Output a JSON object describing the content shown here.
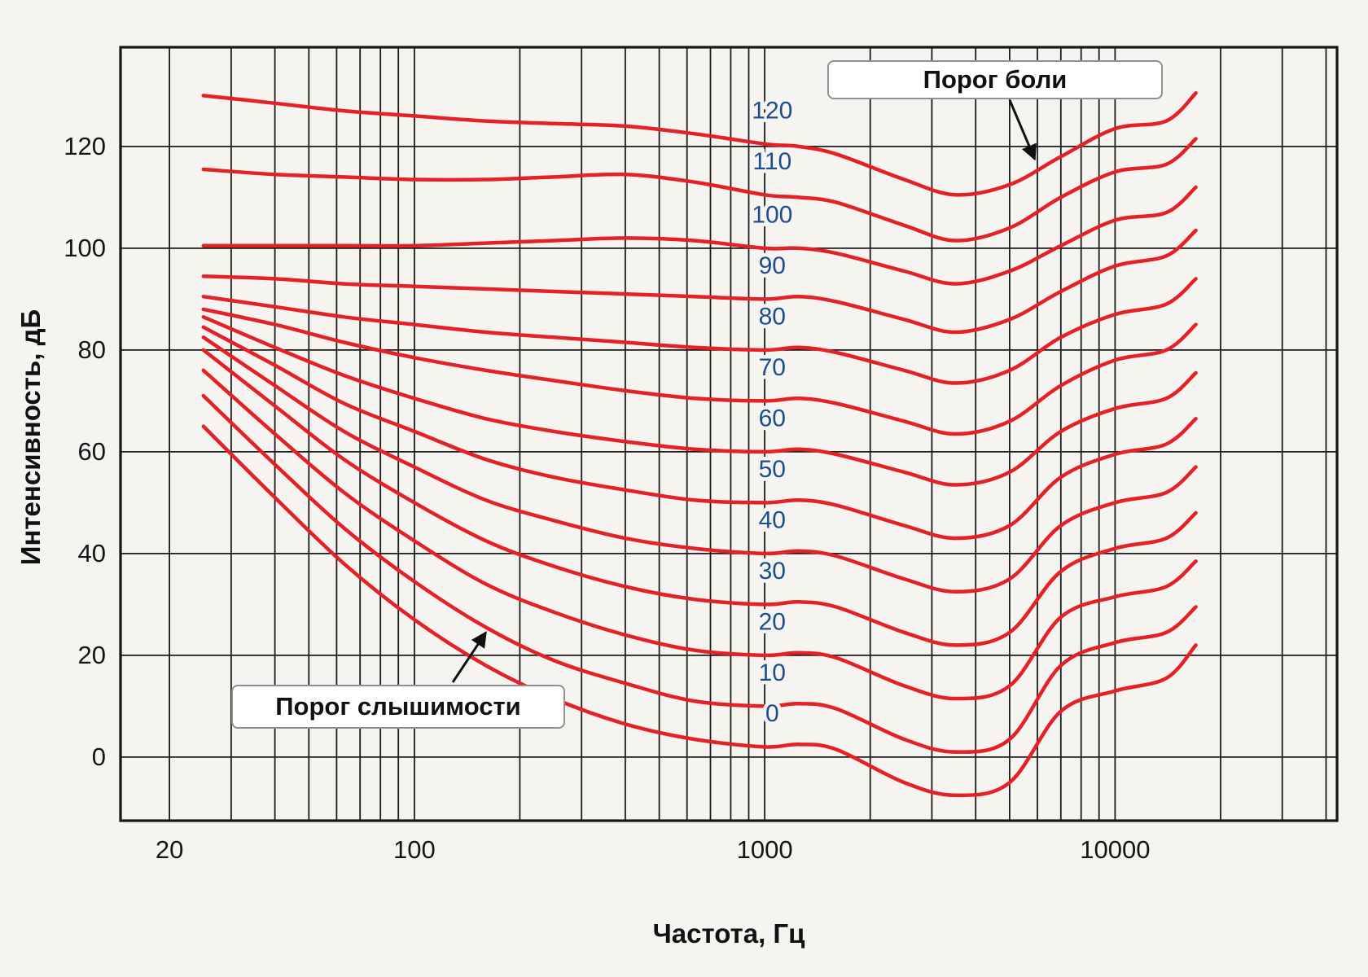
{
  "page": {
    "background": "#f5f4f1"
  },
  "chart_data": {
    "type": "line",
    "title": "",
    "xlabel": "Частота, Гц",
    "ylabel": "Интенсивность, дБ",
    "x_scale": "log",
    "xlim": [
      14.5,
      43000
    ],
    "ylim": [
      -12.5,
      139.5
    ],
    "x_ticks": [
      20,
      100,
      1000,
      10000
    ],
    "y_ticks": [
      0,
      20,
      40,
      60,
      80,
      100,
      120
    ],
    "x_grid": [
      20,
      30,
      40,
      50,
      60,
      70,
      80,
      90,
      100,
      200,
      300,
      400,
      500,
      600,
      700,
      800,
      900,
      1000,
      2000,
      3000,
      4000,
      5000,
      6000,
      7000,
      8000,
      9000,
      10000,
      20000,
      30000,
      40000
    ],
    "y_grid": [
      0,
      20,
      40,
      60,
      80,
      100,
      120
    ],
    "grid_on": true,
    "legend": "labels-on-curves",
    "curve_color": "#e32126",
    "curve_label_color": "#1e4d8c",
    "grid_color": "#1b1b1b",
    "frequencies": [
      25,
      40,
      63,
      100,
      160,
      250,
      400,
      630,
      1000,
      1250,
      1600,
      2500,
      3500,
      5000,
      7000,
      10000,
      14000,
      17000
    ],
    "series_label_freq": 1000,
    "series": [
      {
        "name": "120",
        "values": [
          130,
          128.5,
          127,
          126,
          125,
          124.5,
          124,
          122.5,
          120.5,
          120,
          118.5,
          113.5,
          110.5,
          112.5,
          118,
          123.5,
          125,
          130.5
        ]
      },
      {
        "name": "110",
        "values": [
          115.5,
          114.5,
          114,
          113.5,
          113.5,
          114,
          114.5,
          113,
          110.5,
          110,
          109,
          104.5,
          101.5,
          104,
          110,
          115,
          116.5,
          121.5
        ]
      },
      {
        "name": "100",
        "values": [
          100.5,
          100.5,
          100.5,
          100.5,
          101,
          101.5,
          102,
          101.5,
          100,
          100,
          99,
          95.5,
          93,
          95.5,
          100.5,
          105.5,
          107,
          112
        ]
      },
      {
        "name": "90",
        "values": [
          94.5,
          94,
          93,
          92.5,
          92,
          91.5,
          91,
          90.5,
          90,
          90.5,
          89.5,
          86,
          83.5,
          86,
          91.5,
          96.5,
          98.5,
          103.5
        ]
      },
      {
        "name": "80",
        "values": [
          90.5,
          88.5,
          86.5,
          85,
          83.5,
          82.5,
          81.5,
          80.5,
          80,
          80.5,
          79.5,
          76,
          73.5,
          76,
          82.5,
          87,
          89,
          94
        ]
      },
      {
        "name": "70",
        "values": [
          88,
          85,
          81.5,
          78.5,
          76,
          74,
          72,
          70.5,
          70,
          70.5,
          69.5,
          66,
          63.5,
          66,
          73,
          78,
          80,
          85
        ]
      },
      {
        "name": "60",
        "values": [
          86.5,
          80.5,
          75,
          70.5,
          66.5,
          64,
          62,
          60.5,
          60,
          60.5,
          59.5,
          56,
          53.5,
          56,
          64,
          68.5,
          70.5,
          75.5
        ]
      },
      {
        "name": "50",
        "values": [
          84.5,
          77,
          69.5,
          64,
          58.5,
          55,
          52.5,
          50.5,
          50,
          50.5,
          49.5,
          45.5,
          43,
          45.5,
          55,
          59.5,
          61.5,
          66.5
        ]
      },
      {
        "name": "40",
        "values": [
          82.5,
          73,
          64,
          57,
          50.5,
          46.5,
          43,
          41,
          40,
          40.5,
          39.5,
          35,
          32.5,
          35,
          45.5,
          50,
          52,
          57
        ]
      },
      {
        "name": "30",
        "values": [
          80,
          69,
          58.5,
          50,
          42.5,
          37.5,
          33.5,
          31,
          30,
          30.5,
          29.5,
          24.5,
          22,
          24.5,
          36.5,
          41,
          43,
          48
        ]
      },
      {
        "name": "20",
        "values": [
          76,
          63.5,
          52,
          42.5,
          34,
          28.5,
          24,
          21,
          20,
          20.5,
          19.5,
          14,
          11.5,
          14,
          27.5,
          31.5,
          33.5,
          38.5
        ]
      },
      {
        "name": "10",
        "values": [
          71,
          57.5,
          45,
          34.5,
          25.5,
          19,
          14.5,
          11,
          10,
          10.5,
          9.5,
          3.5,
          1,
          3.5,
          18,
          22.5,
          24.5,
          29.5
        ]
      },
      {
        "name": "0",
        "values": [
          65,
          51,
          38,
          27,
          18,
          11.5,
          6.5,
          3.5,
          2,
          2.5,
          1.5,
          -5,
          -7.5,
          -5,
          9,
          13,
          15.5,
          22
        ]
      }
    ],
    "annotations": [
      {
        "text": "Порог боли",
        "target_f": 5900,
        "target_db": 117.5
      },
      {
        "text": "Порог слышимости",
        "target_f": 160,
        "target_db": 24.5
      }
    ]
  }
}
